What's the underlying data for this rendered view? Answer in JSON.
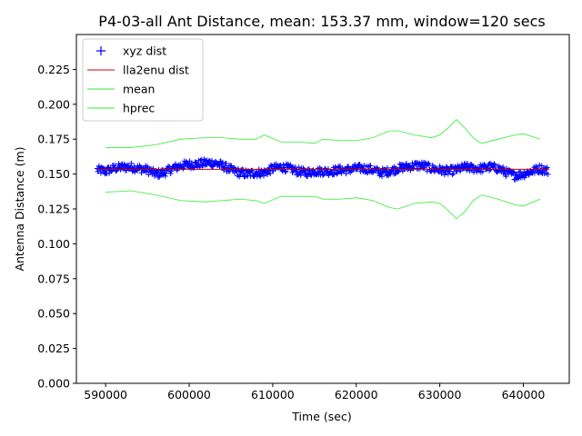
{
  "chart_data": {
    "type": "line",
    "title": "P4-03-all Ant Distance, mean: 153.37 mm, window=120 secs",
    "xlabel": "Time (sec)",
    "ylabel": "Antenna Distance (m)",
    "xlim": [
      586500,
      645500
    ],
    "ylim": [
      0.0,
      0.25
    ],
    "xticks": [
      590000,
      600000,
      610000,
      620000,
      630000,
      640000
    ],
    "xtick_labels": [
      "590000",
      "600000",
      "610000",
      "620000",
      "630000",
      "640000"
    ],
    "yticks": [
      0.0,
      0.025,
      0.05,
      0.075,
      0.1,
      0.125,
      0.15,
      0.175,
      0.2,
      0.225
    ],
    "ytick_labels": [
      "0.000",
      "0.025",
      "0.050",
      "0.075",
      "0.100",
      "0.125",
      "0.150",
      "0.175",
      "0.200",
      "0.225"
    ],
    "grid": false,
    "legend_position": "top-left",
    "series": [
      {
        "name": "xyz dist",
        "kind": "scatter",
        "marker": "+",
        "color": "#0000ff",
        "x": [
          589000,
          590000,
          591000,
          592000,
          593000,
          594000,
          595000,
          596000,
          597000,
          598000,
          599000,
          600000,
          601000,
          602000,
          603000,
          604000,
          605000,
          606000,
          607000,
          608000,
          609000,
          610000,
          611000,
          612000,
          613000,
          614000,
          615000,
          616000,
          617000,
          618000,
          619000,
          620000,
          621000,
          622000,
          623000,
          624000,
          625000,
          626000,
          627000,
          628000,
          629000,
          630000,
          631000,
          632000,
          633000,
          634000,
          635000,
          636000,
          637000,
          638000,
          639000,
          640000,
          641000,
          642000,
          643000
        ],
        "y": [
          0.153,
          0.152,
          0.154,
          0.155,
          0.155,
          0.154,
          0.153,
          0.15,
          0.151,
          0.154,
          0.156,
          0.157,
          0.157,
          0.158,
          0.158,
          0.156,
          0.153,
          0.151,
          0.15,
          0.151,
          0.151,
          0.154,
          0.155,
          0.154,
          0.152,
          0.151,
          0.152,
          0.152,
          0.152,
          0.153,
          0.153,
          0.154,
          0.154,
          0.153,
          0.151,
          0.152,
          0.154,
          0.155,
          0.156,
          0.156,
          0.154,
          0.153,
          0.152,
          0.153,
          0.155,
          0.154,
          0.154,
          0.155,
          0.154,
          0.151,
          0.149,
          0.15,
          0.152,
          0.154,
          0.152
        ]
      },
      {
        "name": "lla2enu dist",
        "kind": "line",
        "color": "#cc0000",
        "x": [
          589000,
          643000
        ],
        "y": [
          0.1534,
          0.1534
        ]
      },
      {
        "name": "mean",
        "kind": "line",
        "color": "#33ee33",
        "x": [
          590000,
          593000,
          596000,
          599000,
          602000,
          604000,
          606000,
          608000,
          609000,
          611000,
          613000,
          615000,
          616000,
          618000,
          620000,
          622000,
          624000,
          625000,
          627000,
          629000,
          630000,
          631000,
          632000,
          633000,
          634000,
          635000,
          637000,
          639000,
          640000,
          642000
        ],
        "y": [
          0.137,
          0.138,
          0.135,
          0.131,
          0.13,
          0.131,
          0.132,
          0.131,
          0.129,
          0.134,
          0.134,
          0.134,
          0.132,
          0.132,
          0.133,
          0.131,
          0.126,
          0.125,
          0.129,
          0.13,
          0.129,
          0.124,
          0.118,
          0.123,
          0.131,
          0.135,
          0.132,
          0.128,
          0.127,
          0.132
        ]
      },
      {
        "name": "hprec",
        "kind": "line",
        "color": "#33ee33",
        "x": [
          590000,
          593000,
          596000,
          599000,
          602000,
          604000,
          606000,
          608000,
          609000,
          611000,
          613000,
          615000,
          616000,
          618000,
          620000,
          622000,
          624000,
          625000,
          627000,
          629000,
          630000,
          631000,
          632000,
          633000,
          634000,
          635000,
          637000,
          639000,
          640000,
          642000
        ],
        "y": [
          0.169,
          0.169,
          0.171,
          0.175,
          0.176,
          0.176,
          0.175,
          0.175,
          0.178,
          0.173,
          0.173,
          0.172,
          0.175,
          0.174,
          0.174,
          0.176,
          0.181,
          0.181,
          0.178,
          0.176,
          0.178,
          0.183,
          0.189,
          0.183,
          0.176,
          0.172,
          0.175,
          0.178,
          0.179,
          0.175
        ]
      }
    ]
  }
}
